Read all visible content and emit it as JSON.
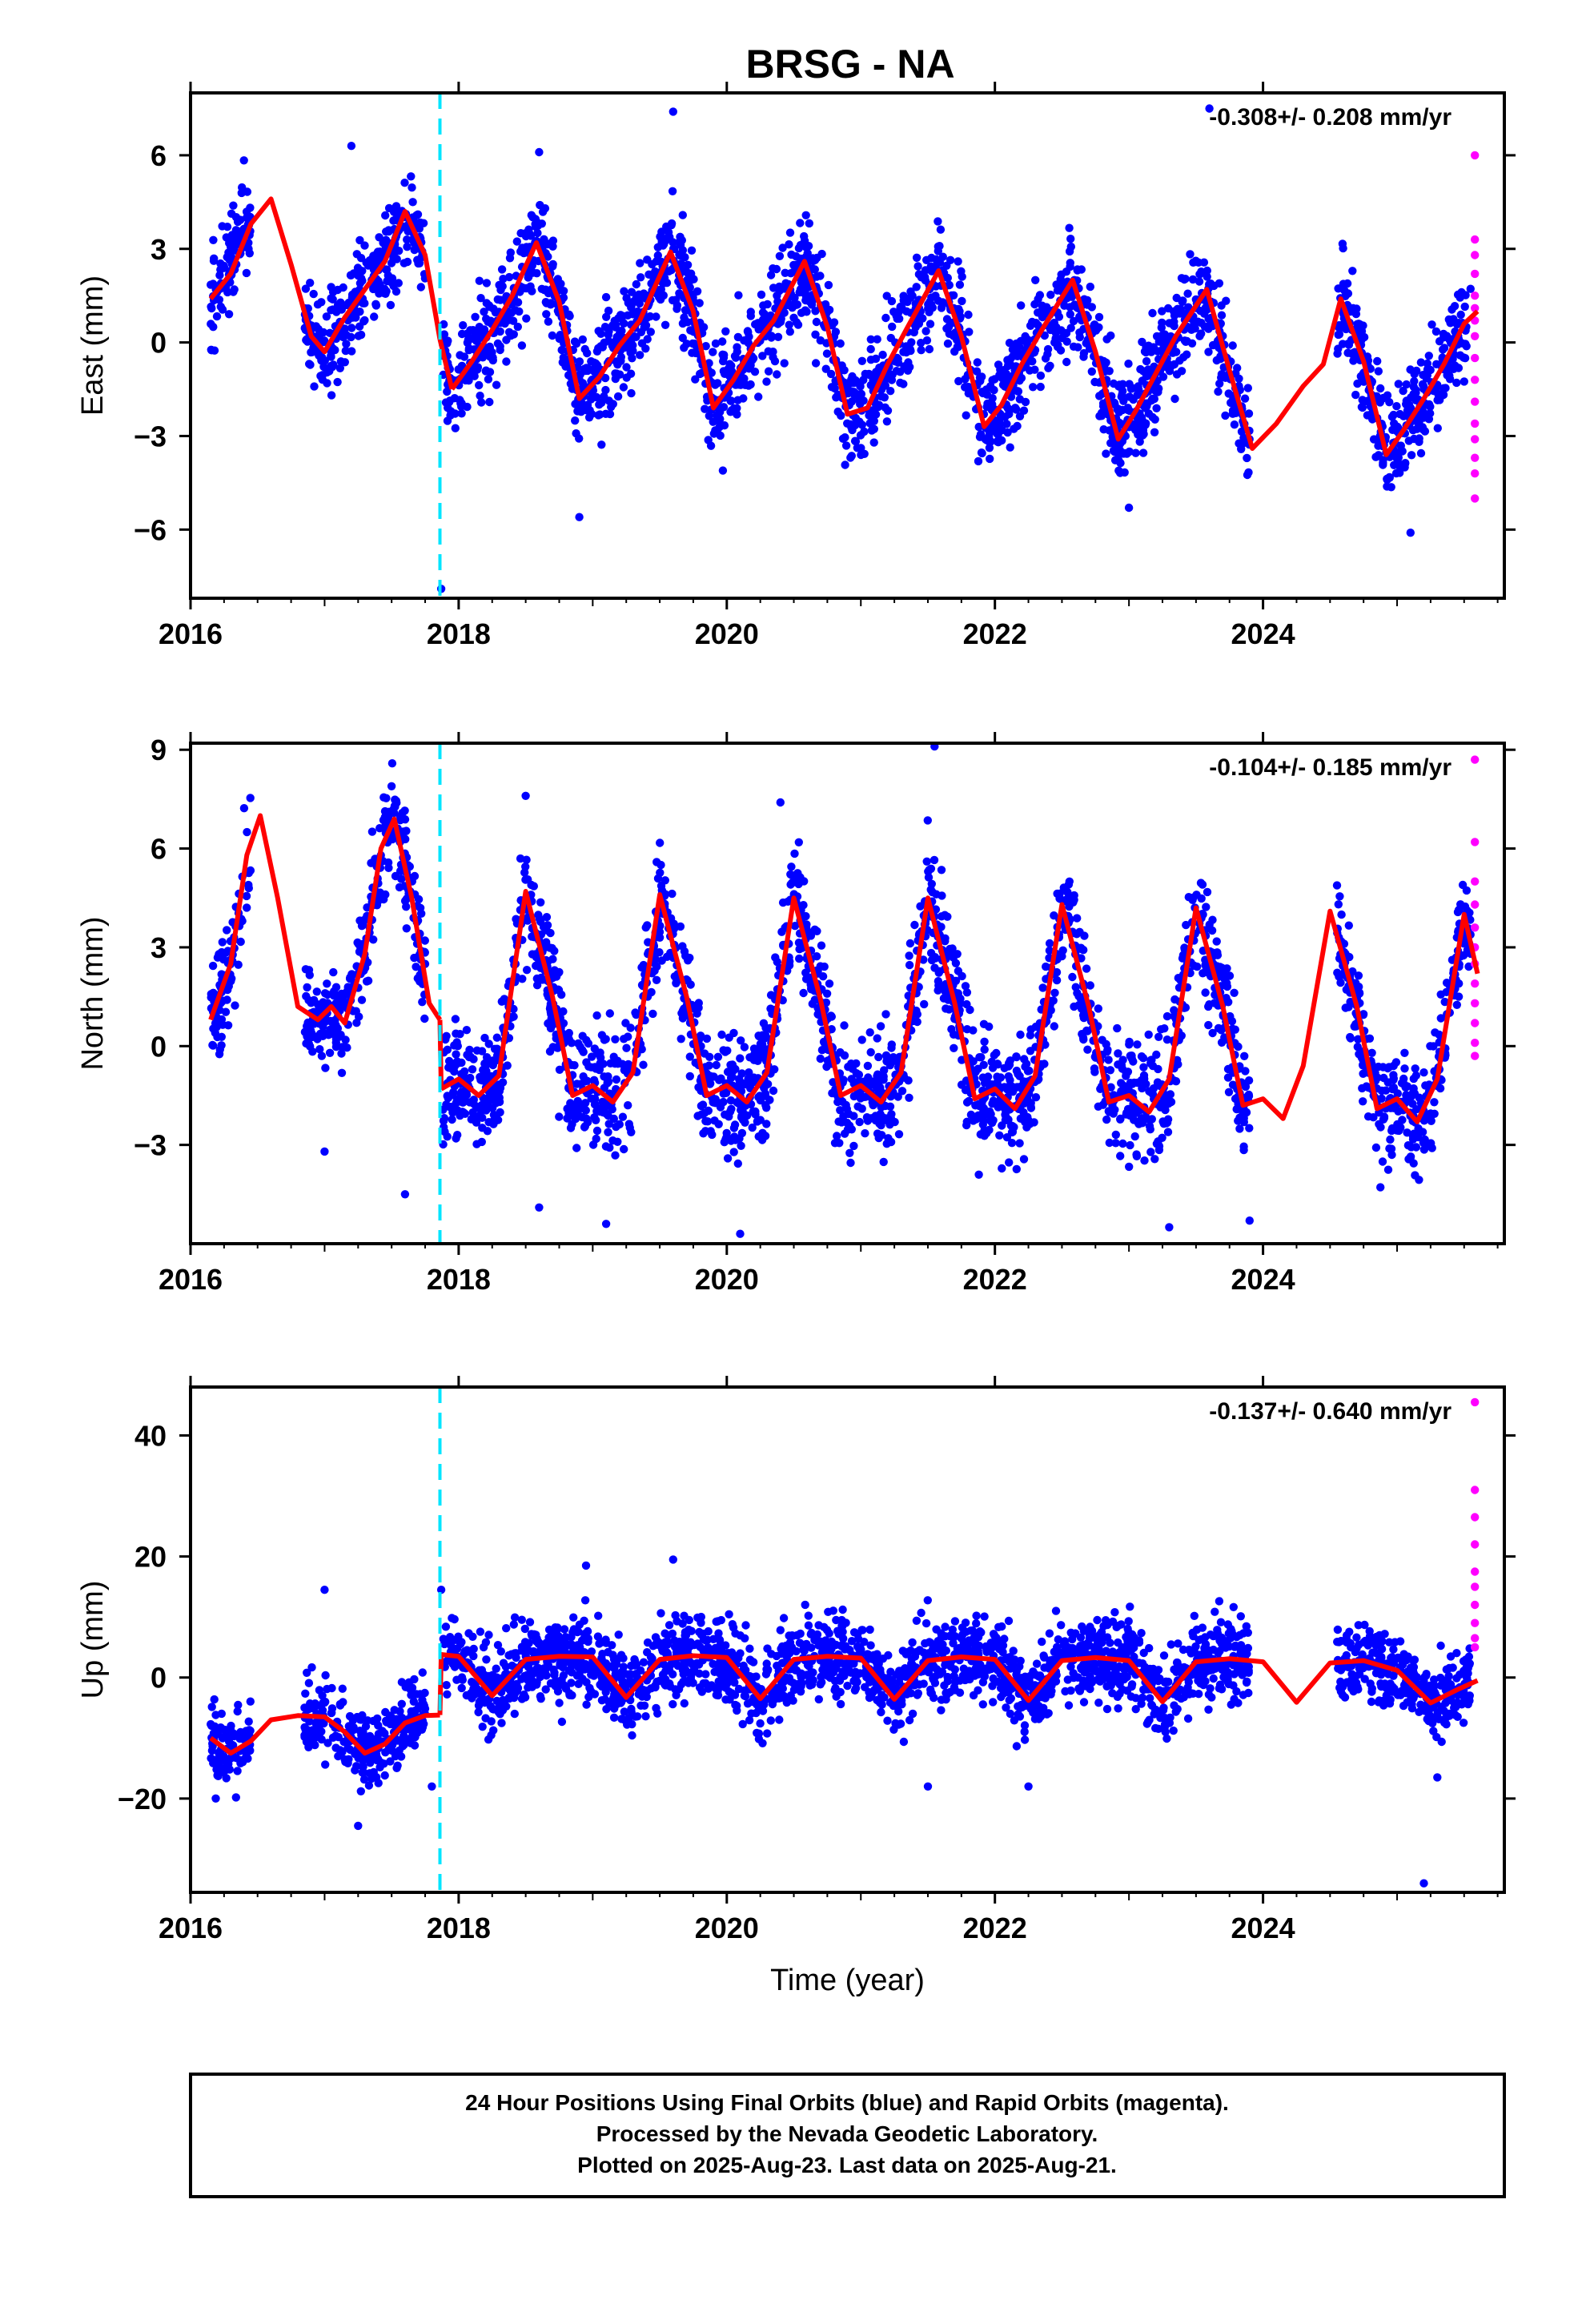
{
  "title": "BRSG - NA",
  "footer": {
    "lines": [
      "24 Hour Positions Using Final Orbits (blue) and Rapid Orbits (magenta).",
      "Processed by the Nevada Geodetic Laboratory.",
      "Plotted on 2025-Aug-23. Last data on 2025-Aug-21."
    ]
  },
  "colors": {
    "final_orbits": "#0000ff",
    "rapid_orbits": "#ff00ff",
    "model_fit": "#ff0000",
    "offset_marker": "#00e5ff",
    "frame": "#000000"
  },
  "chart_data": [
    {
      "type": "scatter",
      "component": "east",
      "ylabel": "East (mm)",
      "xlabel": "",
      "xlim": [
        2016.0,
        2025.8
      ],
      "ylim": [
        -8.2,
        8.0
      ],
      "xticks": [
        2016,
        2018,
        2020,
        2022,
        2024
      ],
      "xtick_labels": [
        "2016",
        "2018",
        "2020",
        "2022",
        "2024"
      ],
      "yticks": [
        -6,
        -3,
        0,
        3,
        6
      ],
      "ytick_labels": [
        "−6",
        "−3",
        "0",
        "3",
        "6"
      ],
      "rate_text": "-0.308+/- 0.208 mm/yr",
      "offset_epoch": 2017.86,
      "model_fit": {
        "x": [
          2016.15,
          2016.3,
          2016.45,
          2016.6,
          2016.75,
          2016.9,
          2017.0,
          2017.15,
          2017.3,
          2017.45,
          2017.6,
          2017.75,
          2017.86,
          2017.95,
          2018.1,
          2018.25,
          2018.4,
          2018.58,
          2018.75,
          2018.9,
          2019.05,
          2019.2,
          2019.35,
          2019.58,
          2019.75,
          2019.9,
          2020.05,
          2020.2,
          2020.35,
          2020.58,
          2020.75,
          2020.9,
          2021.05,
          2021.2,
          2021.35,
          2021.58,
          2021.75,
          2021.92,
          2022.05,
          2022.2,
          2022.35,
          2022.58,
          2022.75,
          2022.92,
          2023.05,
          2023.2,
          2023.35,
          2023.58,
          2023.75,
          2023.92,
          2024.1,
          2024.3,
          2024.45,
          2024.58,
          2024.75,
          2024.92,
          2025.05,
          2025.2,
          2025.35,
          2025.5,
          2025.6
        ],
        "y": [
          1.4,
          2.2,
          3.8,
          4.6,
          2.5,
          0.2,
          -0.3,
          0.8,
          1.7,
          2.6,
          4.2,
          2.8,
          0.1,
          -1.5,
          -0.6,
          0.4,
          1.5,
          3.2,
          1.3,
          -1.8,
          -1.1,
          -0.1,
          0.7,
          2.9,
          1.0,
          -2.1,
          -1.2,
          -0.1,
          0.7,
          2.6,
          0.5,
          -2.3,
          -2.1,
          -0.7,
          0.5,
          2.3,
          0.2,
          -2.7,
          -2.0,
          -0.7,
          0.4,
          2.0,
          -0.3,
          -3.1,
          -2.2,
          -1.0,
          0.2,
          1.7,
          -0.9,
          -3.4,
          -2.6,
          -1.4,
          -0.7,
          1.4,
          -0.6,
          -3.6,
          -2.8,
          -1.8,
          -0.7,
          0.6,
          1.0
        ]
      },
      "final_series": {
        "segments": [
          {
            "range": [
              2016.15,
              2016.45
            ],
            "center": [
              1.4,
              4.0
            ],
            "spread": 1.1
          },
          {
            "range": [
              2016.85,
              2017.75
            ],
            "center": "fit",
            "spread": 1.1
          },
          {
            "range": [
              2017.88,
              2023.9
            ],
            "center": "fit",
            "spread": 1.2
          },
          {
            "range": [
              2024.55,
              2025.55
            ],
            "center": "fit",
            "spread": 1.1
          }
        ],
        "outliers": [
          [
            2017.87,
            -7.9
          ],
          [
            2019.6,
            7.4
          ],
          [
            2023.6,
            7.5
          ],
          [
            2017.2,
            6.3
          ],
          [
            2018.6,
            6.1
          ],
          [
            2018.9,
            -5.6
          ],
          [
            2023.0,
            -5.3
          ],
          [
            2025.1,
            -6.1
          ]
        ]
      },
      "rapid_series": {
        "x": 2025.58,
        "y": [
          6.0,
          3.3,
          2.8,
          2.2,
          1.5,
          1.1,
          0.7,
          0.2,
          -0.5,
          -1.2,
          -1.9,
          -2.6,
          -3.1,
          -3.7,
          -4.2,
          -5.0
        ]
      }
    },
    {
      "type": "scatter",
      "component": "north",
      "ylabel": "North (mm)",
      "xlabel": "",
      "xlim": [
        2016.0,
        2025.8
      ],
      "ylim": [
        -6.0,
        9.2
      ],
      "xticks": [
        2016,
        2018,
        2020,
        2022,
        2024
      ],
      "xtick_labels": [
        "2016",
        "2018",
        "2020",
        "2022",
        "2024"
      ],
      "yticks": [
        -3,
        0,
        3,
        6,
        9
      ],
      "ytick_labels": [
        "−3",
        "0",
        "3",
        "6",
        "9"
      ],
      "rate_text": "-0.104+/- 0.185 mm/yr",
      "offset_epoch": 2017.86,
      "model_fit": {
        "x": [
          2016.15,
          2016.3,
          2016.42,
          2016.52,
          2016.65,
          2016.8,
          2016.95,
          2017.05,
          2017.15,
          2017.3,
          2017.42,
          2017.52,
          2017.65,
          2017.78,
          2017.86,
          2017.87,
          2018.0,
          2018.15,
          2018.3,
          2018.5,
          2018.7,
          2018.85,
          2019.0,
          2019.15,
          2019.3,
          2019.5,
          2019.7,
          2019.85,
          2020.0,
          2020.15,
          2020.3,
          2020.5,
          2020.7,
          2020.85,
          2021.0,
          2021.15,
          2021.3,
          2021.5,
          2021.7,
          2021.85,
          2022.0,
          2022.15,
          2022.3,
          2022.5,
          2022.7,
          2022.85,
          2023.0,
          2023.15,
          2023.3,
          2023.5,
          2023.7,
          2023.85,
          2024.0,
          2024.15,
          2024.3,
          2024.5,
          2024.7,
          2024.85,
          2025.0,
          2025.15,
          2025.3,
          2025.5,
          2025.6
        ],
        "y": [
          0.8,
          2.5,
          5.8,
          7.0,
          4.5,
          1.2,
          0.8,
          1.2,
          0.7,
          2.8,
          6.0,
          6.9,
          4.5,
          1.3,
          0.8,
          -1.3,
          -1.0,
          -1.5,
          -0.9,
          4.7,
          1.5,
          -1.5,
          -1.2,
          -1.7,
          -0.8,
          4.6,
          1.5,
          -1.5,
          -1.2,
          -1.7,
          -0.8,
          4.5,
          1.4,
          -1.5,
          -1.2,
          -1.7,
          -0.8,
          4.5,
          1.3,
          -1.6,
          -1.3,
          -1.9,
          -0.9,
          4.3,
          1.2,
          -1.7,
          -1.5,
          -2.0,
          -1.0,
          4.2,
          1.2,
          -1.8,
          -1.6,
          -2.2,
          -0.6,
          4.1,
          1.2,
          -1.9,
          -1.6,
          -2.3,
          -1.0,
          4.0,
          2.2
        ]
      },
      "final_series": {
        "segments": [
          {
            "range": [
              2016.15,
              2016.45
            ],
            "center": "fit",
            "spread": 1.2
          },
          {
            "range": [
              2016.85,
              2017.75
            ],
            "center": "fit",
            "spread": 1.1
          },
          {
            "range": [
              2017.88,
              2023.9
            ],
            "center": "fit",
            "spread": 1.3
          },
          {
            "range": [
              2024.55,
              2025.55
            ],
            "center": "fit",
            "spread": 1.1
          }
        ],
        "outliers": [
          [
            2021.55,
            9.1
          ],
          [
            2018.5,
            7.6
          ],
          [
            2020.4,
            7.4
          ],
          [
            2018.6,
            -4.9
          ],
          [
            2019.1,
            -5.4
          ],
          [
            2020.1,
            -5.7
          ],
          [
            2023.3,
            -5.5
          ],
          [
            2023.9,
            -5.3
          ],
          [
            2017.6,
            -4.5
          ],
          [
            2017.0,
            -3.2
          ]
        ]
      },
      "rapid_series": {
        "x": 2025.58,
        "y": [
          8.7,
          6.2,
          5.0,
          4.3,
          3.6,
          3.0,
          2.5,
          1.9,
          1.3,
          0.7,
          0.1,
          -0.3
        ]
      }
    },
    {
      "type": "scatter",
      "component": "up",
      "ylabel": "Up (mm)",
      "xlabel": "Time (year)",
      "xlim": [
        2016.0,
        2025.8
      ],
      "ylim": [
        -35.5,
        48.0
      ],
      "xticks": [
        2016,
        2018,
        2020,
        2022,
        2024
      ],
      "xtick_labels": [
        "2016",
        "2018",
        "2020",
        "2022",
        "2024"
      ],
      "yticks": [
        -20,
        0,
        20,
        40
      ],
      "ytick_labels": [
        "−20",
        "0",
        "20",
        "40"
      ],
      "rate_text": "-0.137+/- 0.640 mm/yr",
      "offset_epoch": 2017.86,
      "model_fit": {
        "x": [
          2016.15,
          2016.3,
          2016.45,
          2016.6,
          2016.8,
          2017.0,
          2017.15,
          2017.3,
          2017.45,
          2017.6,
          2017.75,
          2017.86,
          2017.87,
          2018.0,
          2018.25,
          2018.5,
          2018.75,
          2019.0,
          2019.25,
          2019.5,
          2019.75,
          2020.0,
          2020.25,
          2020.5,
          2020.75,
          2021.0,
          2021.25,
          2021.5,
          2021.75,
          2022.0,
          2022.25,
          2022.5,
          2022.75,
          2023.0,
          2023.25,
          2023.5,
          2023.75,
          2024.0,
          2024.25,
          2024.5,
          2024.75,
          2025.0,
          2025.25,
          2025.45,
          2025.6
        ],
        "y": [
          -10.0,
          -12.5,
          -10.5,
          -7.0,
          -6.3,
          -6.5,
          -9.0,
          -12.5,
          -11.0,
          -7.5,
          -6.3,
          -6.2,
          3.8,
          3.5,
          -3.0,
          3.0,
          3.5,
          3.4,
          -3.3,
          3.0,
          3.6,
          3.3,
          -3.5,
          3.0,
          3.5,
          3.2,
          -3.6,
          2.8,
          3.4,
          3.0,
          -3.8,
          2.8,
          3.3,
          2.8,
          -4.0,
          2.6,
          3.1,
          2.6,
          -4.1,
          2.4,
          2.8,
          1.2,
          -4.2,
          -2.0,
          -0.5
        ]
      },
      "final_series": {
        "segments": [
          {
            "range": [
              2016.15,
              2016.45
            ],
            "center": "fit",
            "spread": 4.5
          },
          {
            "range": [
              2016.85,
              2017.75
            ],
            "center": "fit",
            "spread": 4.5
          },
          {
            "range": [
              2017.88,
              2023.9
            ],
            "center": "fit",
            "spread": 5.0
          },
          {
            "range": [
              2024.55,
              2025.55
            ],
            "center": "fit",
            "spread": 4.5
          }
        ],
        "outliers": [
          [
            2017.87,
            14.5
          ],
          [
            2017.0,
            14.5
          ],
          [
            2019.6,
            19.5
          ],
          [
            2018.95,
            18.5
          ],
          [
            2017.25,
            -24.5
          ],
          [
            2021.5,
            -18.0
          ],
          [
            2022.25,
            -18.0
          ],
          [
            2025.2,
            -34.0
          ],
          [
            2025.3,
            -16.5
          ],
          [
            2017.8,
            -18.0
          ]
        ]
      },
      "rapid_series": {
        "x": 2025.58,
        "y": [
          45.5,
          31.0,
          26.5,
          22.0,
          17.5,
          15.0,
          12.0,
          9.0,
          6.5,
          5.0
        ]
      }
    }
  ]
}
